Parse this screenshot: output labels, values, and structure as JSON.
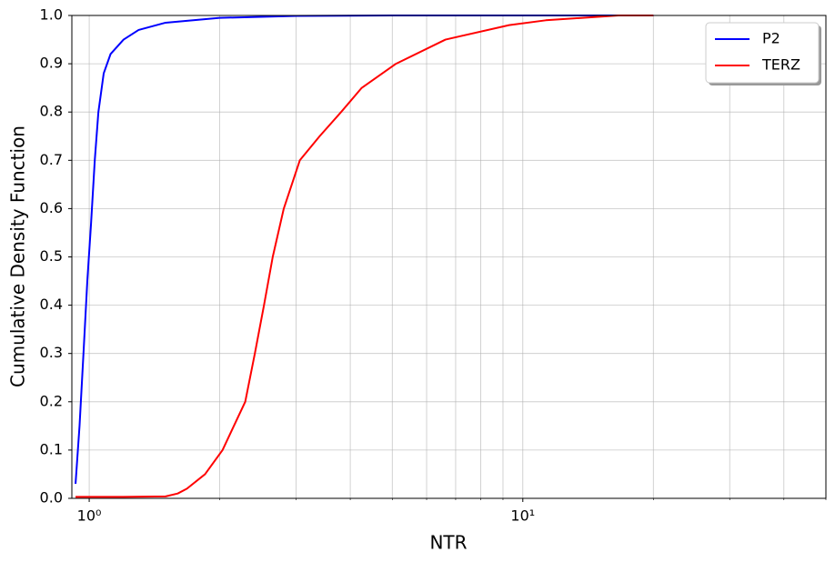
{
  "chart_data": {
    "type": "line",
    "x_label": "NTR",
    "y_label": "Cumulative Density Function",
    "xscale": "log",
    "grid": true,
    "legend": "upper right",
    "xlim": [
      0.912,
      50
    ],
    "ylim": [
      0,
      1
    ],
    "xticks": [
      {
        "value": 1,
        "label": "10⁰"
      },
      {
        "value": 10,
        "label": "10¹"
      }
    ],
    "xminor_ticks": [
      2,
      3,
      4,
      5,
      6,
      7,
      8,
      9,
      20,
      30,
      40,
      50
    ],
    "yticks": [
      {
        "value": 0,
        "label": "0.0"
      },
      0.1,
      0.2,
      0.3,
      0.4,
      0.5,
      0.6,
      0.7,
      0.8,
      0.9,
      {
        "value": 1,
        "label": "1.0"
      }
    ],
    "series": [
      {
        "name": "P2",
        "color": "#0000ff",
        "x": [
          0.93,
          0.95,
          0.97,
          0.99,
          1.01,
          1.03,
          1.05,
          1.08,
          1.12,
          1.2,
          1.3,
          1.5,
          2,
          3,
          5,
          20
        ],
        "values": [
          0.03,
          0.15,
          0.3,
          0.45,
          0.57,
          0.7,
          0.8,
          0.88,
          0.92,
          0.95,
          0.97,
          0.985,
          0.995,
          0.999,
          1.0,
          1.0
        ]
      },
      {
        "name": "TERZ",
        "color": "#ff0000",
        "x": [
          0.93,
          1.2,
          1.5,
          1.6,
          1.68,
          1.85,
          2.03,
          2.29,
          2.41,
          2.53,
          2.65,
          2.81,
          3.06,
          3.4,
          3.81,
          4.25,
          5.1,
          6.63,
          9.3,
          11.3,
          16.6,
          20
        ],
        "values": [
          0.003,
          0.003,
          0.004,
          0.01,
          0.02,
          0.05,
          0.1,
          0.2,
          0.3,
          0.4,
          0.5,
          0.6,
          0.7,
          0.75,
          0.8,
          0.85,
          0.9,
          0.95,
          0.98,
          0.99,
          1.0,
          1.0
        ]
      }
    ]
  }
}
